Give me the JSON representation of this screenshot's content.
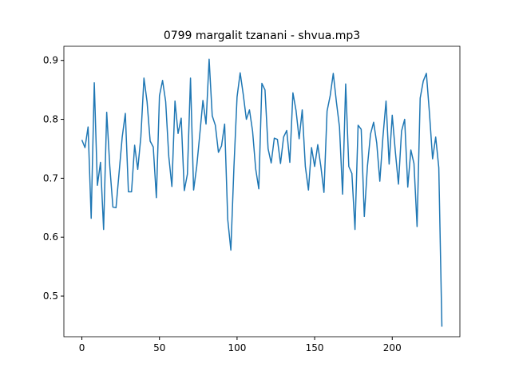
{
  "chart_data": {
    "type": "line",
    "title": "0799 margalit tzanani - shvua.mp3",
    "x": [
      0,
      2,
      4,
      6,
      8,
      10,
      12,
      14,
      16,
      18,
      20,
      22,
      24,
      26,
      28,
      30,
      32,
      34,
      36,
      38,
      40,
      42,
      44,
      46,
      48,
      50,
      52,
      54,
      56,
      58,
      60,
      62,
      64,
      66,
      68,
      70,
      72,
      74,
      76,
      78,
      80,
      82,
      84,
      86,
      88,
      90,
      92,
      94,
      96,
      98,
      100,
      102,
      104,
      106,
      108,
      110,
      112,
      114,
      116,
      118,
      120,
      122,
      124,
      126,
      128,
      130,
      132,
      134,
      136,
      138,
      140,
      142,
      144,
      146,
      148,
      150,
      152,
      154,
      156,
      158,
      160,
      162,
      164,
      166,
      168,
      170,
      172,
      174,
      176,
      178,
      180,
      182,
      184,
      186,
      188,
      190,
      192,
      194,
      196,
      198,
      200,
      202,
      204,
      206,
      208,
      210,
      212,
      214,
      216,
      218,
      220,
      222,
      224,
      226,
      228,
      230,
      232
    ],
    "series": [
      {
        "color": "#1f77b4",
        "values": [
          0.765,
          0.752,
          0.787,
          0.632,
          0.862,
          0.688,
          0.727,
          0.613,
          0.812,
          0.72,
          0.651,
          0.65,
          0.71,
          0.77,
          0.81,
          0.677,
          0.677,
          0.756,
          0.715,
          0.77,
          0.87,
          0.83,
          0.763,
          0.753,
          0.667,
          0.84,
          0.866,
          0.83,
          0.737,
          0.686,
          0.831,
          0.776,
          0.802,
          0.679,
          0.707,
          0.87,
          0.68,
          0.72,
          0.775,
          0.832,
          0.792,
          0.902,
          0.806,
          0.79,
          0.744,
          0.755,
          0.792,
          0.63,
          0.578,
          0.72,
          0.838,
          0.879,
          0.842,
          0.8,
          0.816,
          0.78,
          0.716,
          0.682,
          0.861,
          0.85,
          0.75,
          0.726,
          0.768,
          0.766,
          0.725,
          0.77,
          0.781,
          0.727,
          0.845,
          0.815,
          0.767,
          0.816,
          0.72,
          0.68,
          0.752,
          0.72,
          0.757,
          0.72,
          0.676,
          0.814,
          0.84,
          0.878,
          0.83,
          0.787,
          0.673,
          0.86,
          0.72,
          0.708,
          0.613,
          0.79,
          0.783,
          0.635,
          0.72,
          0.775,
          0.795,
          0.76,
          0.695,
          0.77,
          0.831,
          0.724,
          0.807,
          0.745,
          0.69,
          0.78,
          0.8,
          0.685,
          0.748,
          0.725,
          0.618,
          0.836,
          0.865,
          0.878,
          0.81,
          0.733,
          0.77,
          0.718,
          0.448
        ]
      }
    ],
    "xlim": [
      -11.6,
      243.6
    ],
    "xticks": [
      0,
      50,
      100,
      150,
      200
    ],
    "ylim": [
      0.431,
      0.924
    ],
    "yticks": [
      0.5,
      0.6,
      0.7,
      0.8,
      0.9
    ]
  }
}
